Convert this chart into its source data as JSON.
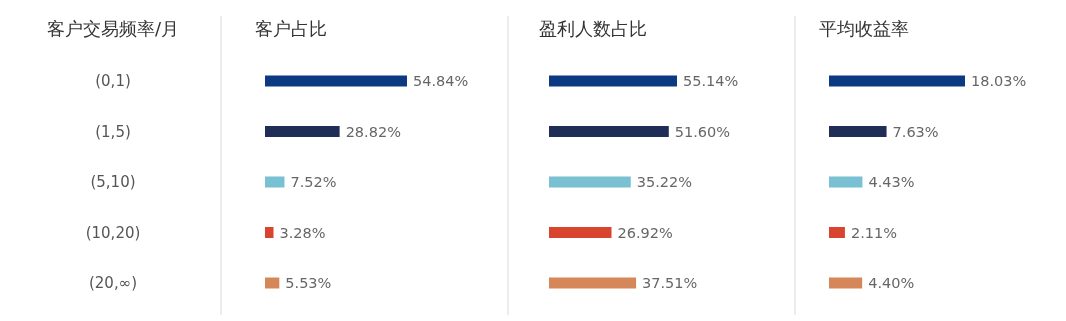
{
  "chart_data": [
    {
      "type": "bar",
      "orientation": "horizontal",
      "title": "客户占比",
      "ylabel": "客户交易频率/月",
      "categories": [
        "(0,1)",
        "(1,5)",
        "(5,10)",
        "(10,20)",
        "(20,∞)"
      ],
      "values": [
        54.84,
        28.82,
        7.52,
        3.28,
        5.53
      ],
      "value_labels": [
        "54.84%",
        "28.82%",
        "7.52%",
        "3.28%",
        "5.53%"
      ],
      "colors": [
        "#0b3a82",
        "#1f2d57",
        "#79c0d2",
        "#d9442f",
        "#d6875a"
      ],
      "tick_labels": "y"
    },
    {
      "type": "bar",
      "orientation": "horizontal",
      "title": "盈利人数占比",
      "categories": [
        null,
        null,
        null,
        null,
        null
      ],
      "values": [
        55.14,
        51.6,
        35.22,
        26.92,
        37.51
      ],
      "value_labels": [
        "55.14%",
        "51.60%",
        "35.22%",
        "26.92%",
        "37.51%"
      ],
      "colors": [
        "#0b3a82",
        "#1f2d57",
        "#79c0d2",
        "#d9442f",
        "#d6875a"
      ],
      "tick_labels": false
    },
    {
      "type": "bar",
      "orientation": "horizontal",
      "title": "平均收益率",
      "categories": [
        null,
        null,
        null,
        null,
        null
      ],
      "values": [
        18.03,
        7.63,
        4.43,
        2.11,
        4.4
      ],
      "value_labels": [
        "18.03%",
        "7.63%",
        "4.43%",
        "2.11%",
        "4.40%"
      ],
      "colors": [
        "#0b3a82",
        "#1f2d57",
        "#79c0d2",
        "#d9442f",
        "#d6875a"
      ],
      "tick_labels": false
    }
  ]
}
